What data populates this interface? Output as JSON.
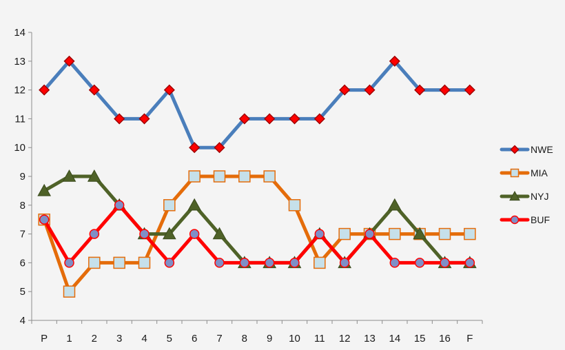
{
  "chart_data": {
    "type": "line",
    "title": "",
    "xlabel": "",
    "ylabel": "",
    "ylim": [
      4,
      14
    ],
    "yticks": [
      4,
      5,
      6,
      7,
      8,
      9,
      10,
      11,
      12,
      13,
      14
    ],
    "grid": false,
    "legend_position": "right",
    "categories": [
      "P",
      "1",
      "2",
      "3",
      "4",
      "5",
      "6",
      "7",
      "8",
      "9",
      "10",
      "11",
      "12",
      "13",
      "14",
      "15",
      "16",
      "F"
    ],
    "series": [
      {
        "name": "NWE",
        "color": "#4a7ebb",
        "marker": "diamond",
        "marker_color": "#ff0000",
        "values": [
          12,
          13,
          12,
          11,
          11,
          12,
          10,
          10,
          11,
          11,
          11,
          11,
          12,
          12,
          13,
          12,
          12,
          12
        ]
      },
      {
        "name": "MIA",
        "color": "#e46c0a",
        "marker": "square",
        "marker_color": "#c6e0ea",
        "values": [
          7.5,
          5,
          6,
          6,
          6,
          8,
          9,
          9,
          9,
          9,
          8,
          6,
          7,
          7,
          7,
          7,
          7,
          7
        ]
      },
      {
        "name": "NYJ",
        "color": "#4f6228",
        "marker": "triangle",
        "marker_color": "#4f6228",
        "values": [
          8.5,
          9,
          9,
          8,
          7,
          7,
          8,
          7,
          6,
          6,
          6,
          7,
          6,
          7,
          8,
          7,
          6,
          6
        ]
      },
      {
        "name": "BUF",
        "color": "#ff0000",
        "marker": "circle",
        "marker_color": "#7f8fc6",
        "values": [
          7.5,
          6,
          7,
          8,
          7,
          6,
          7,
          6,
          6,
          6,
          6,
          7,
          6,
          7,
          6,
          6,
          6,
          6
        ]
      }
    ]
  }
}
